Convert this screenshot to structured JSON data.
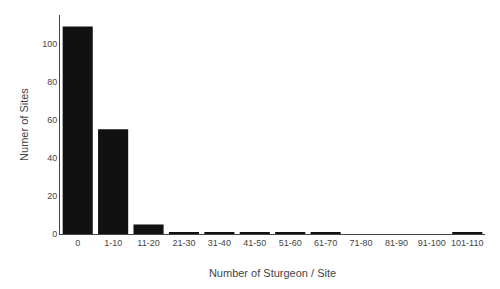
{
  "chart_data": {
    "type": "bar",
    "categories": [
      "0",
      "1-10",
      "11-20",
      "21-30",
      "31-40",
      "41-50",
      "51-60",
      "61-70",
      "71-80",
      "81-90",
      "91-100",
      "101-110"
    ],
    "values": [
      109,
      55,
      5,
      1,
      1,
      1,
      1,
      1,
      0,
      0,
      0,
      1
    ],
    "color": "#111111",
    "xlabel": "Number of Sturgeon / Site",
    "ylabel": "Numer of Sites",
    "ylim": [
      0,
      115
    ],
    "yticks": [
      0,
      20,
      40,
      60,
      80,
      100
    ],
    "grid": false
  }
}
